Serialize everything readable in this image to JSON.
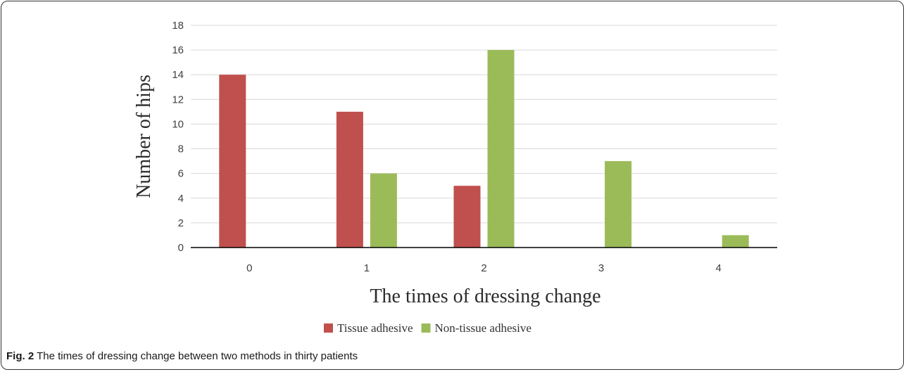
{
  "chart_data": {
    "type": "bar",
    "categories": [
      "0",
      "1",
      "2",
      "3",
      "4"
    ],
    "series": [
      {
        "name": "Tissue adhesive",
        "color": "#c0504d",
        "values": [
          14,
          11,
          5,
          0,
          0
        ]
      },
      {
        "name": "Non-tissue adhesive",
        "color": "#9bbb59",
        "values": [
          0,
          6,
          16,
          7,
          1
        ]
      }
    ],
    "xlabel": "The times of dressing change",
    "ylabel": "Number of hips",
    "ylim": [
      0,
      18
    ],
    "yticks": [
      0,
      2,
      4,
      6,
      8,
      10,
      12,
      14,
      16,
      18
    ],
    "grid": true,
    "legend_position": "bottom"
  },
  "caption": {
    "label": "Fig. 2",
    "text": " The times of dressing change between two methods in thirty patients"
  }
}
